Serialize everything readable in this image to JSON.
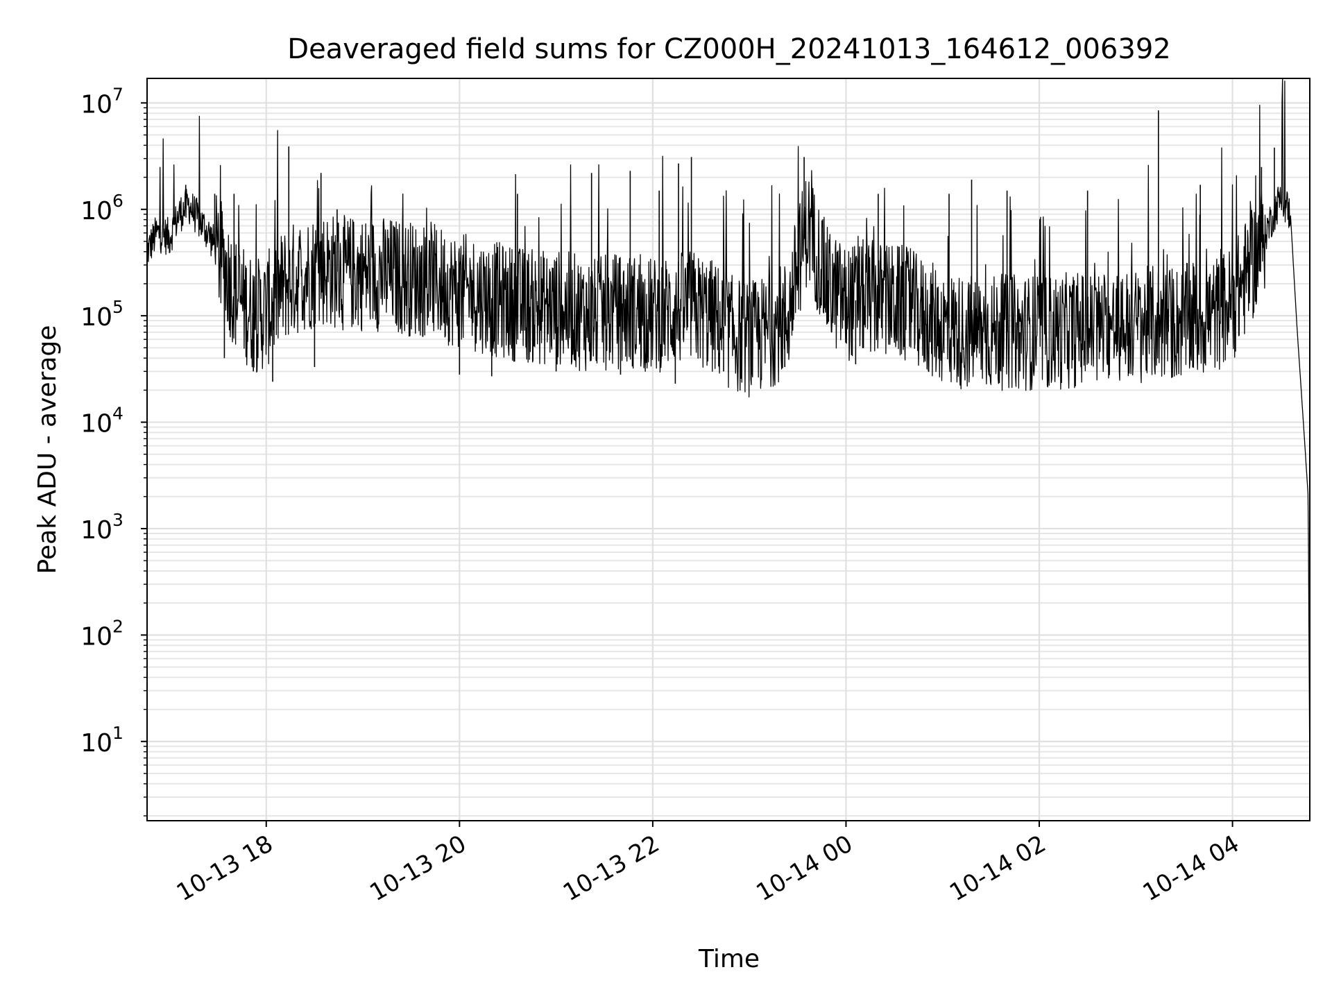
{
  "chart_data": {
    "type": "line",
    "title": "Deaveraged field sums for CZ000H_20241013_164612_006392",
    "xlabel": "Time",
    "ylabel": "Peak ADU - average",
    "y_scale": "log",
    "ylim": [
      1.8,
      17000000
    ],
    "xlim": [
      "2024-10-13 16:46",
      "2024-10-14 04:48"
    ],
    "x_ticks": [
      {
        "t": "2024-10-13 18:00",
        "label": "10-13 18"
      },
      {
        "t": "2024-10-13 20:00",
        "label": "10-13 20"
      },
      {
        "t": "2024-10-13 22:00",
        "label": "10-13 22"
      },
      {
        "t": "2024-10-14 00:00",
        "label": "10-14 00"
      },
      {
        "t": "2024-10-14 02:00",
        "label": "10-14 02"
      },
      {
        "t": "2024-10-14 04:00",
        "label": "10-14 04"
      }
    ],
    "y_ticks": [
      {
        "value": 10,
        "base": "10",
        "exp": "1"
      },
      {
        "value": 100,
        "base": "10",
        "exp": "2"
      },
      {
        "value": 1000,
        "base": "10",
        "exp": "3"
      },
      {
        "value": 10000,
        "base": "10",
        "exp": "4"
      },
      {
        "value": 100000,
        "base": "10",
        "exp": "5"
      },
      {
        "value": 1000000,
        "base": "10",
        "exp": "6"
      },
      {
        "value": 10000000,
        "base": "10",
        "exp": "7"
      }
    ],
    "grid": true,
    "legend": "none",
    "series": [
      {
        "color": "#000000",
        "points": [
          [
            "2024-10-13 16:46",
            400000
          ],
          [
            "2024-10-13 16:52",
            600000
          ],
          [
            "2024-10-13 17:00",
            550000
          ],
          [
            "2024-10-13 17:06",
            900000
          ],
          [
            "2024-10-13 17:12",
            1100000
          ],
          [
            "2024-10-13 17:18",
            800000
          ],
          [
            "2024-10-13 17:24",
            600000
          ],
          [
            "2024-10-13 17:30",
            400000
          ],
          [
            "2024-10-13 17:36",
            250000
          ],
          [
            "2024-10-13 17:42",
            150000
          ],
          [
            "2024-10-13 17:48",
            120000
          ],
          [
            "2024-10-13 17:54",
            100000
          ],
          [
            "2024-10-13 18:00",
            110000
          ],
          [
            "2024-10-13 18:06",
            150000
          ],
          [
            "2024-10-13 18:12",
            200000
          ],
          [
            "2024-10-13 18:24",
            250000
          ],
          [
            "2024-10-13 18:36",
            280000
          ],
          [
            "2024-10-13 18:48",
            250000
          ],
          [
            "2024-10-13 19:00",
            250000
          ],
          [
            "2024-10-13 19:12",
            250000
          ],
          [
            "2024-10-13 19:24",
            230000
          ],
          [
            "2024-10-13 19:36",
            220000
          ],
          [
            "2024-10-13 19:48",
            200000
          ],
          [
            "2024-10-13 20:00",
            170000
          ],
          [
            "2024-10-13 20:12",
            160000
          ],
          [
            "2024-10-13 20:24",
            140000
          ],
          [
            "2024-10-13 20:36",
            130000
          ],
          [
            "2024-10-13 20:48",
            120000
          ],
          [
            "2024-10-13 21:00",
            120000
          ],
          [
            "2024-10-13 21:12",
            110000
          ],
          [
            "2024-10-13 21:24",
            100000
          ],
          [
            "2024-10-13 21:36",
            110000
          ],
          [
            "2024-10-13 21:48",
            110000
          ],
          [
            "2024-10-13 22:00",
            100000
          ],
          [
            "2024-10-13 22:12",
            110000
          ],
          [
            "2024-10-13 22:24",
            120000
          ],
          [
            "2024-10-13 22:36",
            100000
          ],
          [
            "2024-10-13 22:48",
            70000
          ],
          [
            "2024-10-13 23:00",
            60000
          ],
          [
            "2024-10-13 23:12",
            70000
          ],
          [
            "2024-10-13 23:24",
            100000
          ],
          [
            "2024-10-13 23:30",
            300000
          ],
          [
            "2024-10-13 23:36",
            700000
          ],
          [
            "2024-10-13 23:42",
            400000
          ],
          [
            "2024-10-13 23:48",
            200000
          ],
          [
            "2024-10-14 00:00",
            130000
          ],
          [
            "2024-10-14 00:12",
            150000
          ],
          [
            "2024-10-14 00:24",
            140000
          ],
          [
            "2024-10-14 00:36",
            130000
          ],
          [
            "2024-10-14 00:48",
            100000
          ],
          [
            "2024-10-14 01:00",
            80000
          ],
          [
            "2024-10-14 01:12",
            70000
          ],
          [
            "2024-10-14 01:24",
            70000
          ],
          [
            "2024-10-14 01:36",
            70000
          ],
          [
            "2024-10-14 01:48",
            70000
          ],
          [
            "2024-10-14 02:00",
            70000
          ],
          [
            "2024-10-14 02:12",
            70000
          ],
          [
            "2024-10-14 02:24",
            75000
          ],
          [
            "2024-10-14 02:36",
            75000
          ],
          [
            "2024-10-14 02:48",
            80000
          ],
          [
            "2024-10-14 03:00",
            80000
          ],
          [
            "2024-10-14 03:12",
            85000
          ],
          [
            "2024-10-14 03:24",
            85000
          ],
          [
            "2024-10-14 03:36",
            90000
          ],
          [
            "2024-10-14 03:48",
            100000
          ],
          [
            "2024-10-14 04:00",
            130000
          ],
          [
            "2024-10-14 04:12",
            300000
          ],
          [
            "2024-10-14 04:24",
            800000
          ],
          [
            "2024-10-14 04:30",
            1300000
          ],
          [
            "2024-10-14 04:36",
            900000
          ],
          [
            "2024-10-14 04:40",
            80000
          ],
          [
            "2024-10-14 04:44",
            10000
          ],
          [
            "2024-10-14 04:47",
            2000
          ],
          [
            "2024-10-14 04:48",
            4
          ]
        ],
        "spikes": [
          [
            "2024-10-13 17:10",
            1700000
          ],
          [
            "2024-10-13 17:28",
            1400000
          ],
          [
            "2024-10-13 17:40",
            1400000
          ],
          [
            "2024-10-13 18:14",
            3900000
          ],
          [
            "2024-10-13 18:34",
            2200000
          ],
          [
            "2024-10-13 18:44",
            1000000
          ],
          [
            "2024-10-13 20:36",
            1400000
          ],
          [
            "2024-10-13 21:22",
            2200000
          ],
          [
            "2024-10-13 21:46",
            2300000
          ],
          [
            "2024-10-13 22:04",
            1500000
          ],
          [
            "2024-10-13 22:24",
            3100000
          ],
          [
            "2024-10-13 22:16",
            2700000
          ],
          [
            "2024-10-13 23:34",
            3100000
          ],
          [
            "2024-10-14 00:20",
            1400000
          ],
          [
            "2024-10-14 01:04",
            1400000
          ],
          [
            "2024-10-14 01:18",
            1900000
          ],
          [
            "2024-10-14 01:40",
            1500000
          ],
          [
            "2024-10-14 02:30",
            1500000
          ],
          [
            "2024-10-14 03:14",
            8500000
          ],
          [
            "2024-10-14 03:40",
            1700000
          ],
          [
            "2024-10-14 04:18",
            2500000
          ],
          [
            "2024-10-14 04:26",
            3800000
          ]
        ],
        "dips": [
          [
            "2024-10-13 17:34",
            40000
          ],
          [
            "2024-10-13 17:52",
            30000
          ],
          [
            "2024-10-13 18:04",
            24000
          ],
          [
            "2024-10-13 18:30",
            33000
          ],
          [
            "2024-10-13 20:00",
            28000
          ],
          [
            "2024-10-13 20:20",
            27000
          ],
          [
            "2024-10-13 21:00",
            30000
          ],
          [
            "2024-10-13 21:40",
            28000
          ],
          [
            "2024-10-13 22:14",
            23000
          ],
          [
            "2024-10-13 22:44",
            30000
          ],
          [
            "2024-10-13 23:22",
            33000
          ],
          [
            "2024-10-14 00:06",
            35000
          ],
          [
            "2024-10-14 01:12",
            36000
          ],
          [
            "2024-10-14 01:48",
            30000
          ],
          [
            "2024-10-14 02:18",
            37000
          ],
          [
            "2024-10-14 03:24",
            37000
          ]
        ]
      }
    ]
  }
}
